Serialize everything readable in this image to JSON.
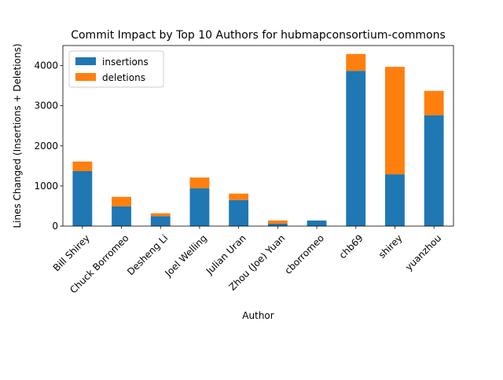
{
  "chart_data": {
    "type": "bar",
    "stacked": true,
    "title": "Commit Impact by Top 10 Authors for hubmapconsortium-commons",
    "xlabel": "Author",
    "ylabel": "Lines Changed (Insertions + Deletions)",
    "ylim": [
      0,
      4500
    ],
    "yticks": [
      0,
      1000,
      2000,
      3000,
      4000
    ],
    "categories": [
      "Bill Shirey",
      "Chuck Borromeo",
      "Desheng Li",
      "Joel Welling",
      "Julian Uran",
      "Zhou (Joe) Yuan",
      "cborromeo",
      "chb69",
      "shirey",
      "yuanzhou"
    ],
    "series": [
      {
        "name": "insertions",
        "color": "#1f77b4",
        "values": [
          1370,
          490,
          250,
          940,
          650,
          60,
          140,
          3870,
          1290,
          2760
        ]
      },
      {
        "name": "deletions",
        "color": "#ff7f0e",
        "values": [
          240,
          240,
          70,
          270,
          160,
          80,
          0,
          420,
          2680,
          610
        ]
      }
    ],
    "grid": false,
    "legend_position": "top-left"
  }
}
